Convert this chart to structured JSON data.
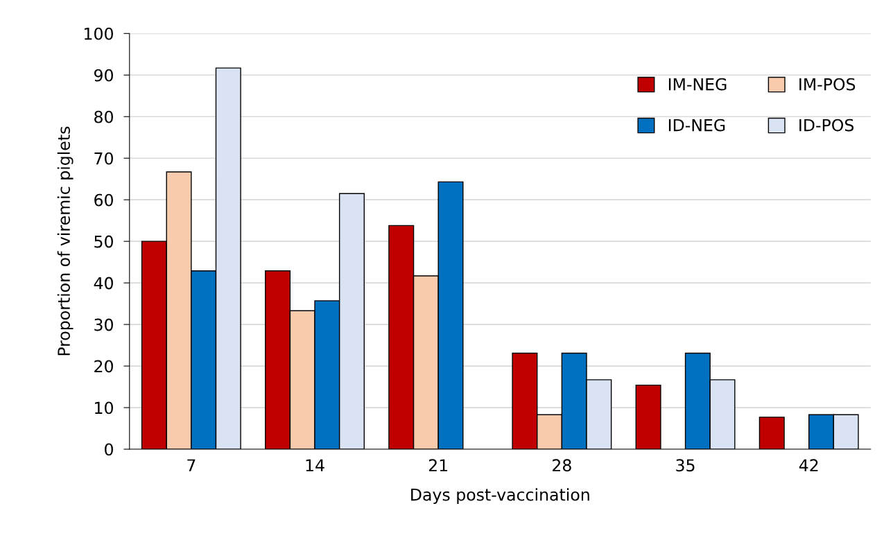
{
  "chart_data": {
    "type": "bar",
    "xlabel": "Days post-vaccination",
    "ylabel": "Proportion of viremic piglets",
    "categories": [
      "7",
      "14",
      "21",
      "28",
      "35",
      "42"
    ],
    "series": [
      {
        "name": "IM-NEG",
        "color": "#c00000",
        "values": [
          50,
          42.9,
          53.8,
          23.1,
          15.4,
          7.7
        ]
      },
      {
        "name": "IM-POS",
        "color": "#f8cbad",
        "values": [
          66.7,
          33.3,
          41.7,
          8.3,
          null,
          null
        ]
      },
      {
        "name": "ID-NEG",
        "color": "#0070c0",
        "values": [
          42.9,
          35.7,
          64.3,
          23.1,
          23.1,
          8.3
        ]
      },
      {
        "name": "ID-POS",
        "color": "#dae3f3",
        "values": [
          91.7,
          61.5,
          null,
          16.7,
          16.7,
          8.3
        ]
      }
    ],
    "ylim": [
      0,
      100
    ],
    "yticks": [
      0,
      10,
      20,
      30,
      40,
      50,
      60,
      70,
      80,
      90,
      100
    ],
    "grid": "y",
    "legend": "top right"
  }
}
